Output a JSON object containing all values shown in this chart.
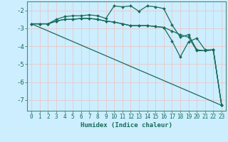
{
  "xlabel": "Humidex (Indice chaleur)",
  "background_color": "#cceeff",
  "grid_color": "#e8c8c8",
  "line_color": "#1a6b5a",
  "xlim": [
    -0.5,
    23.5
  ],
  "ylim": [
    -7.6,
    -1.5
  ],
  "yticks": [
    -7,
    -6,
    -5,
    -4,
    -3,
    -2
  ],
  "xticks": [
    0,
    1,
    2,
    3,
    4,
    5,
    6,
    7,
    8,
    9,
    10,
    11,
    12,
    13,
    14,
    15,
    16,
    17,
    18,
    19,
    20,
    21,
    22,
    23
  ],
  "lines": [
    {
      "x": [
        0,
        1,
        2,
        3,
        4,
        5,
        6,
        7,
        8,
        9,
        10,
        11,
        12,
        13,
        14,
        15,
        16,
        17,
        18,
        19,
        20,
        21,
        22,
        23
      ],
      "y": [
        -2.75,
        -2.75,
        -2.75,
        -2.5,
        -2.35,
        -2.3,
        -2.3,
        -2.25,
        -2.3,
        -2.45,
        -1.75,
        -1.8,
        -1.75,
        -2.05,
        -1.75,
        -1.8,
        -1.9,
        -2.8,
        -3.5,
        -3.35,
        -4.2,
        -4.25,
        -4.2,
        -7.3
      ],
      "marker": "D",
      "markersize": 2.0,
      "linewidth": 0.9
    },
    {
      "x": [
        0,
        1,
        2,
        3,
        4,
        5,
        6,
        7,
        8,
        9,
        10,
        11,
        12,
        13,
        14,
        15,
        16,
        17,
        18,
        19,
        20,
        21,
        22,
        23
      ],
      "y": [
        -2.75,
        -2.75,
        -2.75,
        -2.6,
        -2.5,
        -2.5,
        -2.45,
        -2.45,
        -2.5,
        -2.6,
        -2.65,
        -2.75,
        -2.85,
        -2.85,
        -2.85,
        -2.9,
        -2.95,
        -3.15,
        -3.35,
        -3.5,
        -4.25,
        -4.25,
        -4.2,
        -7.3
      ],
      "marker": "D",
      "markersize": 2.0,
      "linewidth": 0.9
    },
    {
      "x": [
        0,
        1,
        2,
        3,
        4,
        5,
        6,
        7,
        8,
        9,
        10,
        11,
        12,
        13,
        14,
        15,
        16,
        17,
        18,
        19,
        20,
        21,
        22,
        23
      ],
      "y": [
        -2.75,
        -2.75,
        -2.75,
        -2.6,
        -2.5,
        -2.5,
        -2.45,
        -2.45,
        -2.5,
        -2.6,
        -2.65,
        -2.75,
        -2.85,
        -2.85,
        -2.85,
        -2.9,
        -2.95,
        -3.7,
        -4.6,
        -3.75,
        -3.55,
        -4.2,
        -4.2,
        -7.3
      ],
      "marker": "D",
      "markersize": 2.0,
      "linewidth": 0.9
    },
    {
      "x": [
        0,
        23
      ],
      "y": [
        -2.75,
        -7.3
      ],
      "marker": null,
      "markersize": 0,
      "linewidth": 0.9
    }
  ]
}
